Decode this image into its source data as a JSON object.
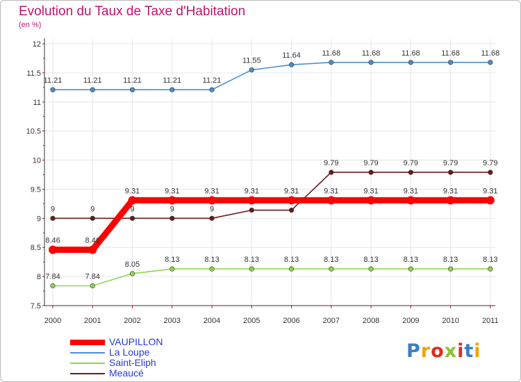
{
  "title": "Evolution du Taux de Taxe d'Habitation",
  "subtitle": "(en %)",
  "brand": {
    "text": "Proxiti",
    "colors": [
      "#3a7fc4",
      "#f1a400",
      "#e22b1e",
      "#8cbf2f",
      "#e22b1e",
      "#3a7fc4",
      "#f1a400"
    ]
  },
  "chart_data": {
    "type": "line",
    "title": "Evolution du Taux de Taxe d'Habitation",
    "ylabel": "(en %)",
    "x": [
      "2000",
      "2001",
      "2002",
      "2003",
      "2004",
      "2005",
      "2006",
      "2007",
      "2008",
      "2009",
      "2010",
      "2011"
    ],
    "ylim": [
      7.5,
      12
    ],
    "yticks": [
      "7.5",
      "8",
      "8.5",
      "9",
      "9.5",
      "10",
      "10.5",
      "11",
      "11.5",
      "12"
    ],
    "grid": true,
    "legend": "bottom-left",
    "series": [
      {
        "name": "VAUPILLON",
        "color": "#ff0000",
        "bold": true,
        "values": [
          8.46,
          8.46,
          9.31,
          9.31,
          9.31,
          9.31,
          9.31,
          9.31,
          9.31,
          9.31,
          9.31,
          9.31
        ],
        "labels": [
          "8.46",
          "8.46",
          "9.31",
          "9.31",
          "9.31",
          "9.31",
          "9.31",
          "9.31",
          "9.31",
          "9.31",
          "9.31",
          "9.31"
        ]
      },
      {
        "name": "La Loupe",
        "color": "#4a8fd0",
        "values": [
          11.21,
          11.21,
          11.21,
          11.21,
          11.21,
          11.55,
          11.64,
          11.68,
          11.68,
          11.68,
          11.68,
          11.68
        ],
        "labels": [
          "11.21",
          "11.21",
          "11.21",
          "11.21",
          "11.21",
          "11.55",
          "11.64",
          "11.68",
          "11.68",
          "11.68",
          "11.68",
          "11.68"
        ]
      },
      {
        "name": "Saint-Eliph",
        "color": "#8ed64e",
        "values": [
          7.84,
          7.84,
          8.05,
          8.13,
          8.13,
          8.13,
          8.13,
          8.13,
          8.13,
          8.13,
          8.13,
          8.13
        ],
        "labels": [
          "7.84",
          "7.84",
          "8.05",
          "8.13",
          "8.13",
          "8.13",
          "8.13",
          "8.13",
          "8.13",
          "8.13",
          "8.13",
          "8.13"
        ]
      },
      {
        "name": "Meaucé",
        "color": "#6b1a1a",
        "values": [
          9,
          9,
          9,
          9,
          9,
          9.14,
          9.14,
          9.79,
          9.79,
          9.79,
          9.79,
          9.79
        ],
        "labels": [
          "9",
          "9",
          "9",
          "9",
          "9",
          "9.14",
          "9.14",
          "9.79",
          "9.79",
          "9.79",
          "9.79",
          "9.79"
        ]
      }
    ]
  }
}
